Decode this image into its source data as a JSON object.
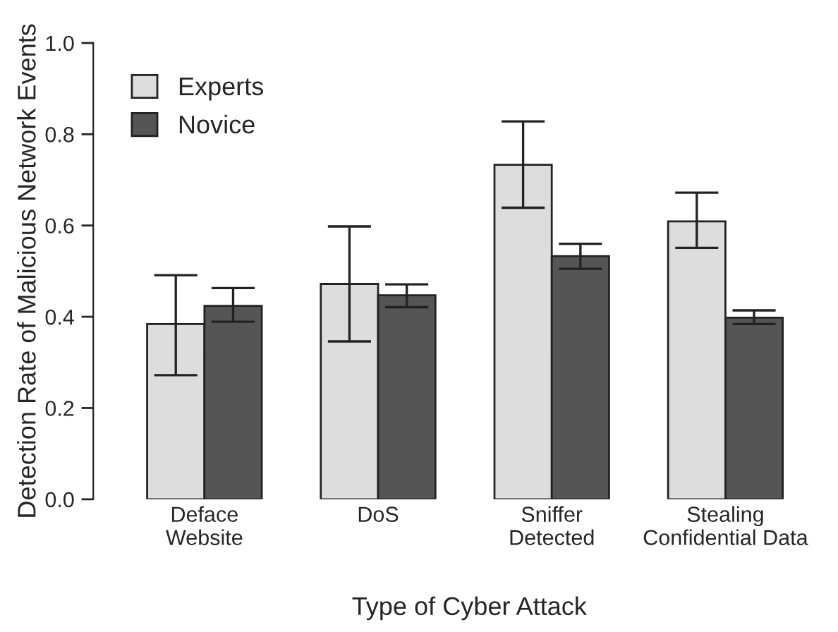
{
  "chart_data": {
    "type": "bar",
    "xlabel": "Type of Cyber Attack",
    "ylabel": "Detection Rate of Malicious Network Events",
    "categories": [
      "Deface\nWebsite",
      "DoS",
      "Sniffer\nDetected",
      "Stealing\nConfidential Data"
    ],
    "series": [
      {
        "name": "Experts",
        "color": "#dddddd",
        "values": [
          0.384,
          0.472,
          0.733,
          0.609
        ],
        "errors": [
          [
            0.272,
            0.491
          ],
          [
            0.346,
            0.598
          ],
          [
            0.639,
            0.828
          ],
          [
            0.551,
            0.672
          ]
        ]
      },
      {
        "name": "Novice",
        "color": "#555555",
        "values": [
          0.424,
          0.447,
          0.533,
          0.398
        ],
        "errors": [
          [
            0.389,
            0.463
          ],
          [
            0.421,
            0.471
          ],
          [
            0.505,
            0.56
          ],
          [
            0.384,
            0.414
          ]
        ]
      }
    ],
    "ylim": [
      0,
      1
    ],
    "yticks": [
      {
        "value": 0,
        "label": "0.0"
      },
      0.2,
      0.4,
      0.6,
      0.8,
      {
        "value": 1,
        "label": "1.0"
      }
    ],
    "legend": "top left",
    "grid": false
  }
}
